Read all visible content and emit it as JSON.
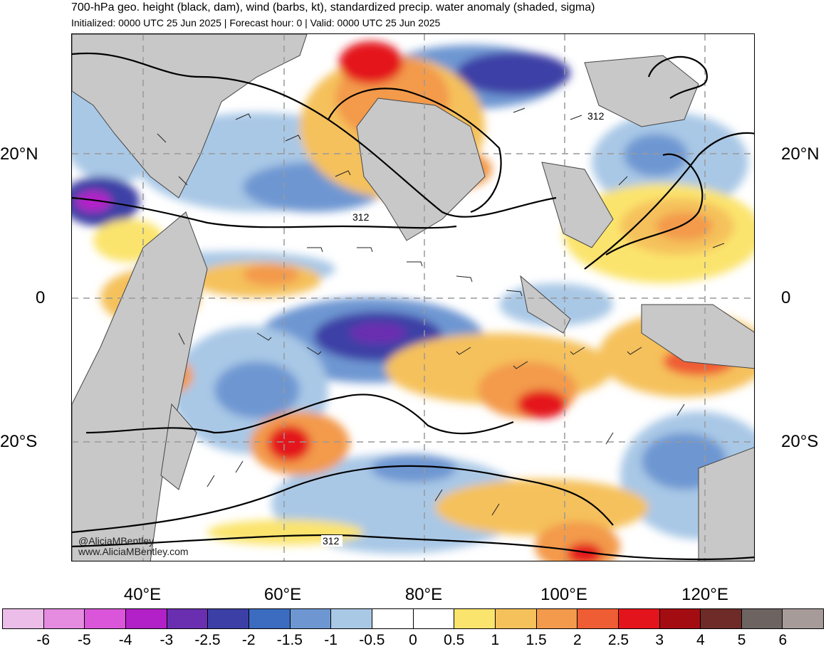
{
  "header": {
    "title": "700-hPa geo. height (black, dam), wind (barbs, kt), standardized precip. water anomaly (shaded, sigma)",
    "subtitle": "Initialized: 0000 UTC 25 Jun 2025 | Forecast hour: 0 | Valid: 0000 UTC 25 Jun 2025"
  },
  "map": {
    "lat_labels": [
      "20°N",
      "0",
      "20°S"
    ],
    "lon_labels": [
      "40°E",
      "60°E",
      "80°E",
      "100°E",
      "120°E"
    ],
    "contour_labels": [
      "312",
      "312",
      "312"
    ],
    "credit": {
      "handle": "@AliciaMBentley",
      "url": "www.AliciaMBentley.com"
    },
    "colors": {
      "land_gray": "#c8c8c8",
      "neutral": "#ffffff",
      "contour": "#000000",
      "coastline": "#444444",
      "gridline": "#999999"
    }
  },
  "colorbar": {
    "labels": [
      "-6",
      "-5",
      "-4",
      "-3",
      "-2.5",
      "-2",
      "-1.5",
      "-1",
      "-0.5",
      "0",
      "0.5",
      "1",
      "1.5",
      "2",
      "2.5",
      "3",
      "4",
      "5",
      "6"
    ],
    "colors": [
      "#ecbde8",
      "#e58be0",
      "#da55d9",
      "#b221c8",
      "#6a2fb1",
      "#3c3fa6",
      "#3b6cc0",
      "#6e97d2",
      "#a9c8e6",
      "#ffffff",
      "#ffffff",
      "#fbe46d",
      "#f5c15b",
      "#f39a4c",
      "#ef5d34",
      "#e4141c",
      "#a30d12",
      "#6e2b28",
      "#6d6462",
      "#a79b9a"
    ]
  }
}
